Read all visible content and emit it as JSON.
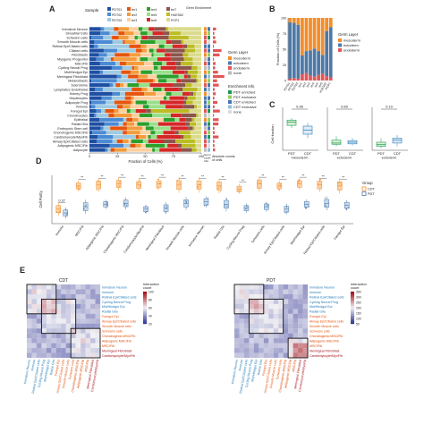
{
  "panel_labels": [
    "A",
    "B",
    "C",
    "D",
    "E"
  ],
  "panelA": {
    "legend_sample_title": "Sample",
    "samples": [
      {
        "name": "PDT01",
        "color": "#1f4fa3"
      },
      {
        "name": "PDT02",
        "color": "#4b8bd4"
      },
      {
        "name": "PDT03",
        "color": "#9ecae1"
      },
      {
        "name": "ter1",
        "color": "#e6550d"
      },
      {
        "name": "ter2",
        "color": "#f39c3c"
      },
      {
        "name": "ter3",
        "color": "#fdd0a2"
      },
      {
        "name": "ter4",
        "color": "#2ca02c"
      },
      {
        "name": "ter5",
        "color": "#98df8a"
      },
      {
        "name": "ter6",
        "color": "#d62728"
      },
      {
        "name": "ter7",
        "color": "#8c564b"
      },
      {
        "name": "HUES62",
        "color": "#bcbd22"
      },
      {
        "name": "PCP1",
        "color": "#dbdb8d"
      }
    ],
    "legend_extra_title": "Germ Enrichment",
    "categories": [
      "Immature Neuron",
      "Sinoatrial Cells",
      "Schwann cells",
      "Smooth Muscle cells",
      "Retinal Epi/Ciliated cells",
      "Ciliated cells",
      "Fibroblasts",
      "Myogenic Progenitor",
      "MSC/Fib",
      "Cycling Neural Prog",
      "Mid/Hindgut Epi",
      "Meningeal Fibroblast",
      "Melanoblasts",
      "Sclerotome",
      "Lymphatics Endothelial",
      "Kidney Prog",
      "Hepatocytes",
      "Adipocyte Prog",
      "Immune",
      "Foregut Epi",
      "Chondrocytes",
      "Epithelial",
      "Radial Glia",
      "Embryonic Stem cell",
      "Chondrogenic MSC/Fib",
      "Cardiomyocyte/MyoFib",
      "Airway Epi/Ciliated cells",
      "Adipogenic MSC/Fib",
      "Adipocyte"
    ],
    "xlabel": "Fraction of Cells (%)",
    "xticks": [
      "0",
      "25",
      "50",
      "75",
      "100"
    ],
    "abs_label": "Absolute counts of cells",
    "germ_legend_title": "Germ Layer",
    "germ_layers": [
      {
        "name": "mesoderm",
        "color": "#f28e2b"
      },
      {
        "name": "ectoderm",
        "color": "#4e79a7"
      },
      {
        "name": "endoderm",
        "color": "#e15759"
      },
      {
        "name": "none",
        "color": "#bbbbbb"
      }
    ],
    "enrich_legend_title": "Enrichment Info",
    "enrich_items": [
      {
        "name": "PDT enriched",
        "color": "#1a9850"
      },
      {
        "name": "PDT exclusive",
        "color": "#91cf60"
      },
      {
        "name": "CDT enriched",
        "color": "#4575b4"
      },
      {
        "name": "CDT exclusive",
        "color": "#91bfdb"
      },
      {
        "name": "none",
        "color": "#dddddd"
      }
    ],
    "bottom_labels": [
      "Germ",
      "Layer",
      "Info"
    ]
  },
  "panelB": {
    "ylabel": "Fraction of Cells (%)",
    "yticks": [
      "0",
      "25",
      "50",
      "75",
      "100"
    ],
    "legend_title": "Germ Layer",
    "legend": [
      {
        "name": "mesoderm",
        "color": "#f28e2b"
      },
      {
        "name": "ectoderm",
        "color": "#4e79a7"
      },
      {
        "name": "endoderm",
        "color": "#e15759"
      }
    ],
    "samples": [
      "PDT01",
      "PDT02",
      "PDT03",
      "ter1",
      "ter2",
      "ter3",
      "ter4",
      "ter5",
      "ter6",
      "HUES62",
      "PCP1"
    ],
    "chart_data": {
      "type": "bar",
      "categories": [
        "PDT01",
        "PDT02",
        "PDT03",
        "ter1",
        "ter2",
        "ter3",
        "ter4",
        "ter5",
        "ter6",
        "HUES62",
        "PCP1"
      ],
      "series": [
        {
          "name": "endoderm",
          "values": [
            3,
            4,
            3,
            10,
            12,
            8,
            6,
            9,
            11,
            7,
            5
          ]
        },
        {
          "name": "ectoderm",
          "values": [
            90,
            88,
            86,
            30,
            35,
            40,
            45,
            38,
            30,
            72,
            80
          ]
        },
        {
          "name": "mesoderm",
          "values": [
            7,
            8,
            11,
            60,
            53,
            52,
            49,
            53,
            59,
            21,
            15
          ]
        }
      ],
      "ylim": [
        0,
        100
      ]
    }
  },
  "panelC": {
    "ylabel": "Cell fraction",
    "groups": [
      {
        "p": "0.36",
        "xlabels": [
          "PDT",
          "CDT"
        ],
        "germ": "mesoderm",
        "pdt": [
          0.55,
          0.62,
          0.7,
          0.75,
          0.8
        ],
        "cdt": [
          0.3,
          0.4,
          0.5,
          0.6,
          0.68
        ]
      },
      {
        "p": "0.89",
        "xlabels": [
          "PDT",
          "CDT"
        ],
        "germ": "ectoderm",
        "pdt": [
          0.1,
          0.15,
          0.18,
          0.25,
          0.35
        ],
        "cdt": [
          0.12,
          0.16,
          0.2,
          0.24,
          0.3
        ]
      },
      {
        "p": "0.19",
        "xlabels": [
          "PDT",
          "CDT"
        ],
        "germ": "ectoderm",
        "pdt": [
          0.05,
          0.1,
          0.14,
          0.2,
          0.3
        ],
        "cdt": [
          0.1,
          0.18,
          0.25,
          0.3,
          0.38
        ]
      }
    ]
  },
  "panelD": {
    "ylabel": "Cell Purity",
    "legend_title": "Group",
    "legend": [
      {
        "name": "CDT",
        "color": "#f28e2b"
      },
      {
        "name": "PDT",
        "color": "#4e79a7"
      }
    ],
    "p_first": "0.27",
    "sig": "**",
    "celltypes": [
      "Immune",
      "MSC/Fib",
      "Adipogenic MSC/Fib",
      "Chondrogenic MSC/Fib",
      "Cardiomyocyte/MyoFib",
      "Meningeal Fibroblast",
      "Smooth Muscle cells",
      "Immature Neuron",
      "Radial Glia",
      "Cycling Neural Prog",
      "Schwann cells",
      "Airway Epi/Ciliated cells",
      "Mid/Hindgut Epi",
      "Retinal Epi/Ciliated cells",
      "Foregut Epi"
    ],
    "chart_data": {
      "type": "box",
      "cdt": [
        0.3,
        0.78,
        0.8,
        0.82,
        0.8,
        0.82,
        0.8,
        0.8,
        0.78,
        0.72,
        0.82,
        0.78,
        0.82,
        0.8,
        0.78
      ],
      "pdt": [
        0.22,
        0.35,
        0.4,
        0.42,
        0.3,
        0.32,
        0.42,
        0.45,
        0.4,
        0.32,
        0.35,
        0.3,
        0.4,
        0.42,
        0.38
      ]
    }
  },
  "panelE": {
    "left_title": "CDT",
    "right_title": "PDT",
    "legend_title": "Interaction count",
    "left_ticks": [
      "100",
      "80",
      "60",
      "40",
      "20"
    ],
    "right_ticks": [
      "350",
      "300",
      "250",
      "200",
      "150",
      "100",
      "50"
    ],
    "cell_labels": [
      "Immature Neuron",
      "Immune",
      "Retinal Epi/Ciliated cells",
      "Cycling Neural Prog",
      "Mid/Hindgut Epi",
      "Radial Glia",
      "Foregut Epi",
      "Airway Epi/Ciliated cells",
      "Smooth Muscle cells",
      "Schwann cells",
      "Chondrogenic MSC/Fib",
      "Adipogenic MSC/Fib",
      "MSC/Fib",
      "Meningeal Fibroblast",
      "Cardiomyocyte/MyoFib"
    ]
  }
}
